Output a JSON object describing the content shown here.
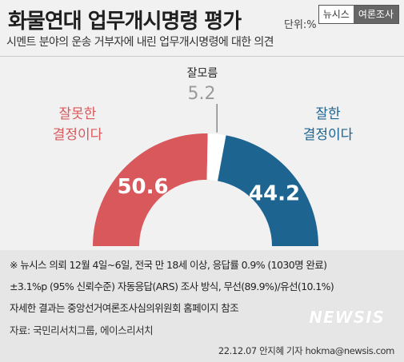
{
  "header": {
    "title": "화물연대 업무개시명령 평가",
    "unit": "단위:%",
    "brand_left": "뉴시스",
    "brand_right": "여론조사",
    "subtitle": "시멘트 분야의 운송 거부자에 내린 업무개시명령에 대한 의견"
  },
  "chart_data": {
    "type": "pie",
    "subtype": "half-donut",
    "categories": [
      "잘못한 결정이다",
      "잘모름",
      "잘한 결정이다"
    ],
    "values": [
      50.6,
      5.2,
      44.2
    ],
    "labels": [
      {
        "lines": [
          "잘못한",
          "결정이다"
        ],
        "value": "50.6"
      },
      {
        "lines": [
          "잘모름"
        ],
        "value": "5.2"
      },
      {
        "lines": [
          "잘한",
          "결정이다"
        ],
        "value": "44.2"
      }
    ],
    "colors": [
      "#d9585c",
      "#ffffff",
      "#1d6491"
    ],
    "label_colors": [
      "#d9585c",
      "#222222",
      "#1d6491"
    ]
  },
  "notes": {
    "lines": [
      "※ 뉴시스 의뢰 12월 4일~6일, 전국 만 18세 이상, 응답률 0.9% (1030명 완료)",
      "±3.1%p (95% 신뢰수준) 자동응답(ARS) 조사 방식, 무선(89.9%)/유선(10.1%)",
      "자세한 결과는 중앙선거여론조사심의위원회 홈페이지 참조"
    ],
    "source": "자료: 국민리서치그룹, 에이스리서치",
    "credit": "22.12.07 안지혜 기자 hokma@newsis.com",
    "watermark": "NEWSIS"
  }
}
